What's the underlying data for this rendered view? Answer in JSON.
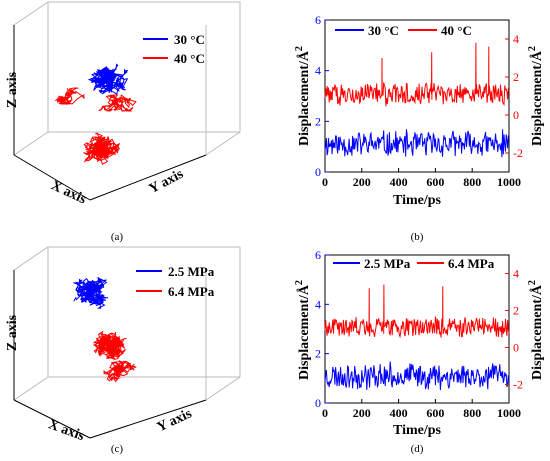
{
  "figure": {
    "panel_labels": [
      "(a)",
      "(b)",
      "(c)",
      "(d)"
    ]
  },
  "chart_data": [
    {
      "panel": "(a)",
      "type": "line3d",
      "axis_labels": {
        "x": "X axis",
        "y": "Y axis",
        "z": "Z axis"
      },
      "series": [
        {
          "name": "30 °C",
          "color": "#0000ff",
          "region": "upper cluster"
        },
        {
          "name": "40 °C",
          "color": "#ff0000",
          "region": "lower cluster"
        }
      ],
      "legend_position": "top-right"
    },
    {
      "panel": "(b)",
      "type": "line",
      "xlabel": "Time/ps",
      "ylabel_left": "Displacement/Å",
      "ylabel_right": "Displacement/Å",
      "ylabel_sup": "2",
      "xlim": [
        0,
        1000
      ],
      "xticks": [
        0,
        200,
        400,
        600,
        800,
        1000
      ],
      "ylim_left": [
        0,
        6
      ],
      "yticks_left": [
        0,
        2,
        4,
        6
      ],
      "ylim_right": [
        -3,
        5
      ],
      "yticks_right": [
        -2,
        0,
        2,
        4
      ],
      "series": [
        {
          "name": "30 °C",
          "color": "#0000ff",
          "axis": "left",
          "mean": 1.1,
          "spread": 0.55,
          "spikes": []
        },
        {
          "name": "40 °C",
          "color": "#ff0000",
          "axis": "right",
          "mean": 1.1,
          "spread": 0.6,
          "spikes": [
            [
              310,
              3.0
            ],
            [
              580,
              3.3
            ],
            [
              820,
              3.8
            ],
            [
              890,
              3.6
            ]
          ]
        }
      ],
      "legend_position": "top"
    },
    {
      "panel": "(c)",
      "type": "line3d",
      "axis_labels": {
        "x": "X axis",
        "y": "Y axis",
        "z": "Z axis"
      },
      "series": [
        {
          "name": "2.5 MPa",
          "color": "#0000ff",
          "region": "upper cluster"
        },
        {
          "name": "6.4 MPa",
          "color": "#ff0000",
          "region": "lower cluster"
        }
      ],
      "legend_position": "top-right"
    },
    {
      "panel": "(d)",
      "type": "line",
      "xlabel": "Time/ps",
      "ylabel_left": "Displacement/Å",
      "ylabel_right": "Displacement/Å",
      "ylabel_sup": "2",
      "xlim": [
        0,
        1000
      ],
      "xticks": [
        0,
        200,
        400,
        600,
        800,
        1000
      ],
      "ylim_left": [
        0,
        6
      ],
      "yticks_left": [
        0,
        2,
        4,
        6
      ],
      "ylim_right": [
        -3,
        5
      ],
      "yticks_right": [
        -2,
        0,
        2,
        4
      ],
      "series": [
        {
          "name": "2.5 MPa",
          "color": "#0000ff",
          "axis": "left",
          "mean": 1.1,
          "spread": 0.55,
          "spikes": []
        },
        {
          "name": "6.4 MPa",
          "color": "#ff0000",
          "axis": "right",
          "mean": 1.1,
          "spread": 0.6,
          "spikes": [
            [
              240,
              3.2
            ],
            [
              320,
              3.4
            ],
            [
              640,
              3.3
            ]
          ]
        }
      ],
      "legend_position": "top"
    }
  ]
}
